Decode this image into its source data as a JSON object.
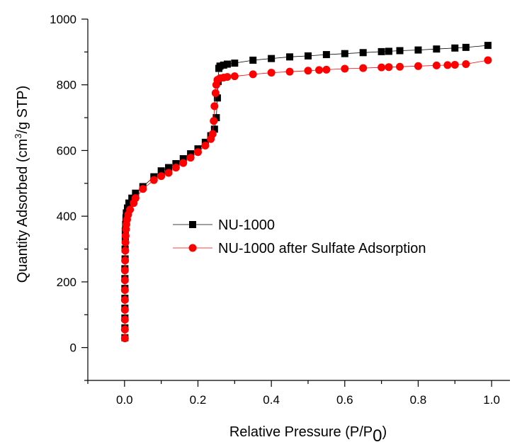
{
  "chart_data": {
    "type": "scatter",
    "xlabel": "Relative Pressure (P/P",
    "xlabel_sub": "0",
    "xlabel_end": ")",
    "ylabel": "Quantity Adsorbed (cm",
    "ylabel_sup": "3",
    "ylabel_end": "/g STP)",
    "xlim": [
      -0.1,
      1.05
    ],
    "ylim": [
      -100,
      1000
    ],
    "xticks": [
      "0.0",
      "0.2",
      "0.4",
      "0.6",
      "0.8",
      "1.0"
    ],
    "xtick_values": [
      0,
      0.2,
      0.4,
      0.6,
      0.8,
      1.0
    ],
    "yticks": [
      "0",
      "200",
      "400",
      "600",
      "800",
      "1000"
    ],
    "ytick_values": [
      0,
      200,
      400,
      600,
      800,
      1000
    ],
    "legend_position": "center",
    "series": [
      {
        "name": "NU-1000",
        "color": "#000000",
        "marker": "square",
        "points": [
          [
            0.001,
            30
          ],
          [
            0.001,
            60
          ],
          [
            0.001,
            90
          ],
          [
            0.001,
            120
          ],
          [
            0.001,
            150
          ],
          [
            0.001,
            180
          ],
          [
            0.001,
            210
          ],
          [
            0.001,
            240
          ],
          [
            0.0015,
            270
          ],
          [
            0.0015,
            300
          ],
          [
            0.002,
            330
          ],
          [
            0.002,
            355
          ],
          [
            0.003,
            375
          ],
          [
            0.004,
            395
          ],
          [
            0.005,
            410
          ],
          [
            0.008,
            425
          ],
          [
            0.012,
            440
          ],
          [
            0.02,
            455
          ],
          [
            0.03,
            470
          ],
          [
            0.05,
            490
          ],
          [
            0.08,
            520
          ],
          [
            0.1,
            538
          ],
          [
            0.12,
            548
          ],
          [
            0.14,
            560
          ],
          [
            0.16,
            575
          ],
          [
            0.18,
            590
          ],
          [
            0.2,
            605
          ],
          [
            0.22,
            625
          ],
          [
            0.235,
            645
          ],
          [
            0.245,
            665
          ],
          [
            0.25,
            700
          ],
          [
            0.253,
            760
          ],
          [
            0.255,
            810
          ],
          [
            0.257,
            850
          ],
          [
            0.26,
            857
          ],
          [
            0.27,
            860
          ],
          [
            0.28,
            863
          ],
          [
            0.3,
            866
          ],
          [
            0.35,
            875
          ],
          [
            0.4,
            880
          ],
          [
            0.45,
            885
          ],
          [
            0.5,
            888
          ],
          [
            0.55,
            892
          ],
          [
            0.6,
            895
          ],
          [
            0.65,
            898
          ],
          [
            0.7,
            901
          ],
          [
            0.72,
            902
          ],
          [
            0.75,
            904
          ],
          [
            0.8,
            906
          ],
          [
            0.85,
            909
          ],
          [
            0.9,
            912
          ],
          [
            0.93,
            914
          ],
          [
            0.99,
            920
          ]
        ]
      },
      {
        "name": "NU-1000 after Sulfate Adsorption",
        "color": "#ff0000",
        "marker": "circle",
        "points": [
          [
            0.001,
            28
          ],
          [
            0.001,
            55
          ],
          [
            0.001,
            85
          ],
          [
            0.001,
            115
          ],
          [
            0.001,
            145
          ],
          [
            0.001,
            175
          ],
          [
            0.001,
            205
          ],
          [
            0.001,
            235
          ],
          [
            0.0015,
            265
          ],
          [
            0.002,
            295
          ],
          [
            0.0025,
            320
          ],
          [
            0.003,
            340
          ],
          [
            0.004,
            360
          ],
          [
            0.005,
            375
          ],
          [
            0.007,
            390
          ],
          [
            0.01,
            405
          ],
          [
            0.015,
            420
          ],
          [
            0.025,
            440
          ],
          [
            0.03,
            455
          ],
          [
            0.05,
            483
          ],
          [
            0.08,
            510
          ],
          [
            0.1,
            522
          ],
          [
            0.12,
            532
          ],
          [
            0.14,
            548
          ],
          [
            0.16,
            562
          ],
          [
            0.18,
            578
          ],
          [
            0.2,
            595
          ],
          [
            0.22,
            615
          ],
          [
            0.235,
            635
          ],
          [
            0.24,
            650
          ],
          [
            0.243,
            690
          ],
          [
            0.245,
            735
          ],
          [
            0.248,
            775
          ],
          [
            0.25,
            800
          ],
          [
            0.253,
            815
          ],
          [
            0.26,
            820
          ],
          [
            0.27,
            822
          ],
          [
            0.28,
            824
          ],
          [
            0.3,
            826
          ],
          [
            0.35,
            832
          ],
          [
            0.4,
            837
          ],
          [
            0.45,
            840
          ],
          [
            0.5,
            843
          ],
          [
            0.53,
            845
          ],
          [
            0.55,
            846
          ],
          [
            0.6,
            849
          ],
          [
            0.65,
            851
          ],
          [
            0.7,
            853
          ],
          [
            0.72,
            854
          ],
          [
            0.75,
            855
          ],
          [
            0.8,
            857
          ],
          [
            0.85,
            859
          ],
          [
            0.88,
            860
          ],
          [
            0.9,
            861
          ],
          [
            0.93,
            863
          ],
          [
            0.99,
            875
          ]
        ]
      }
    ]
  }
}
